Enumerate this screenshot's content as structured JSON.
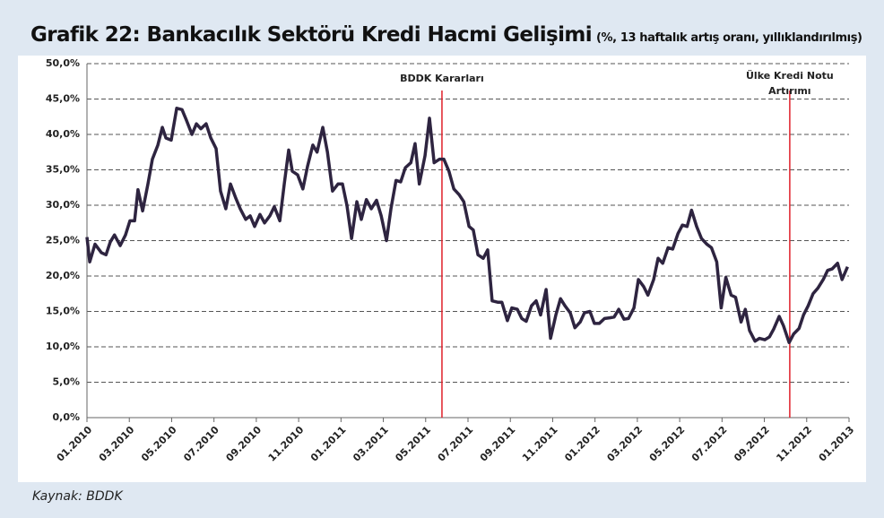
{
  "chart_data": {
    "type": "line",
    "title": "Grafik 22: Bankacılık Sektörü Kredi Hacmi Gelişimi",
    "subtitle": "(%, 13 haftalık artış oranı, yıllıklandırılmış)",
    "source": "Kaynak: BDDK",
    "x": [
      0,
      0.13,
      0.38,
      0.68,
      0.9,
      1.1,
      1.3,
      1.57,
      1.82,
      2.03,
      2.25,
      2.41,
      2.63,
      2.88,
      3.09,
      3.35,
      3.56,
      3.73,
      3.98,
      4.24,
      4.49,
      4.7,
      4.96,
      5.17,
      5.38,
      5.63,
      5.85,
      6.1,
      6.31,
      6.56,
      6.78,
      7.03,
      7.24,
      7.5,
      7.71,
      7.92,
      8.17,
      8.39,
      8.64,
      8.85,
      9.11,
      9.32,
      9.53,
      9.7,
      9.95,
      10.2,
      10.42,
      10.67,
      10.87,
      11.14,
      11.36,
      11.6,
      11.86,
      12.07,
      12.28,
      12.5,
      12.75,
      12.96,
      13.2,
      13.43,
      13.68,
      13.9,
      14.15,
      14.36,
      14.6,
      14.82,
      15.04,
      15.3,
      15.5,
      15.7,
      15.97,
      16.18,
      16.4,
      16.65,
      16.86,
      17.1,
      17.33,
      17.58,
      17.8,
      18.05,
      18.25,
      18.47,
      18.72,
      18.93,
      19.14,
      19.4,
      19.6,
      19.86,
      20.07,
      20.33,
      20.54,
      20.75,
      21.0,
      21.22,
      21.43,
      21.69,
      21.9,
      22.15,
      22.37,
      22.58,
      22.83,
      23.05,
      23.3,
      23.5,
      23.76,
      23.97,
      24.2,
      24.45,
      24.7,
      24.9,
      25.12,
      25.37,
      25.58,
      25.84,
      26.05,
      26.3,
      26.5,
      26.77,
      26.98,
      27.2,
      27.45,
      27.67,
      27.92,
      28.13,
      28.35,
      28.56,
      28.8,
      29.03,
      29.28,
      29.5,
      29.75,
      29.96,
      30.18,
      30.43,
      30.64,
      30.9,
      31.1,
      31.3,
      31.56,
      31.77,
      32.02,
      32.24,
      32.44,
      32.7,
      32.9,
      33.17,
      33.38,
      33.64,
      33.85,
      34.07,
      34.3,
      34.53,
      34.78,
      34.99,
      35.2,
      35.46,
      35.67,
      35.93
    ],
    "series": [
      {
        "name": "Kredi hacmi",
        "color": "#2e2440",
        "values": [
          25.5,
          22,
          24.5,
          23.3,
          23,
          24.8,
          25.8,
          24.3,
          25.8,
          27.8,
          27.8,
          32.2,
          29.2,
          33,
          36.5,
          38.5,
          41,
          39.5,
          39.2,
          43.7,
          43.5,
          42,
          40,
          41.5,
          40.8,
          41.5,
          39.5,
          38,
          32,
          29.5,
          33,
          31,
          29.5,
          28,
          28.5,
          27,
          28.7,
          27.5,
          28.5,
          29.8,
          27.8,
          33,
          37.8,
          34.8,
          34.3,
          32.3,
          35.5,
          38.5,
          37.5,
          41,
          37.5,
          32,
          33,
          33,
          30,
          25.3,
          30.5,
          28,
          30.8,
          29.5,
          30.7,
          28.5,
          25,
          29.5,
          33.5,
          33.3,
          35.3,
          36,
          38.7,
          33,
          37,
          42.3,
          36,
          36.5,
          36.5,
          34.8,
          32.3,
          31.5,
          30.5,
          27,
          26.5,
          23,
          22.5,
          23.7,
          16.5,
          16.3,
          16.3,
          13.7,
          15.5,
          15.3,
          14,
          13.6,
          15.8,
          16.5,
          14.5,
          18.1,
          11.2,
          14.5,
          16.8,
          15.8,
          14.8,
          12.7,
          13.5,
          14.8,
          15,
          13.3,
          13.3,
          14,
          14.1,
          14.2,
          15.3,
          13.9,
          14,
          15.5,
          19.5,
          18.5,
          17.3,
          19.5,
          22.5,
          21.8,
          24,
          23.8,
          26,
          27.2,
          27,
          29.3,
          27,
          25.3,
          24.5,
          24,
          22,
          15.5,
          19.8,
          17.3,
          17,
          13.5,
          15.3,
          12.3,
          10.8,
          11.2,
          11,
          11.4,
          12.5,
          14.3,
          13,
          10.6,
          11.8,
          12.6,
          14.5,
          15.8,
          17.5,
          18.3,
          19.5,
          20.8,
          21,
          21.8,
          19.5,
          21.3
        ]
      }
    ],
    "xlim": [
      0,
      36
    ],
    "xticks": [
      {
        "value": 0,
        "label": "01.2010"
      },
      {
        "value": 2,
        "label": "03.2010"
      },
      {
        "value": 4,
        "label": "05.2010"
      },
      {
        "value": 6,
        "label": "07.2010"
      },
      {
        "value": 8,
        "label": "09.2010"
      },
      {
        "value": 10,
        "label": "11.2010"
      },
      {
        "value": 12,
        "label": "01.2011"
      },
      {
        "value": 14,
        "label": "03.2011"
      },
      {
        "value": 16,
        "label": "05.2011"
      },
      {
        "value": 18,
        "label": "07.2011"
      },
      {
        "value": 20,
        "label": "09.2011"
      },
      {
        "value": 22,
        "label": "11.2011"
      },
      {
        "value": 24,
        "label": "01.2012"
      },
      {
        "value": 26,
        "label": "03.2012"
      },
      {
        "value": 28,
        "label": "05.2012"
      },
      {
        "value": 30,
        "label": "07.2012"
      },
      {
        "value": 32,
        "label": "09.2012"
      },
      {
        "value": 34,
        "label": "11.2012"
      },
      {
        "value": 36,
        "label": "01.2013"
      }
    ],
    "ylim": [
      0,
      50
    ],
    "yticks": [
      {
        "value": 0,
        "label": "0,0%"
      },
      {
        "value": 5,
        "label": "5,0%"
      },
      {
        "value": 10,
        "label": "10,0%"
      },
      {
        "value": 15,
        "label": "15,0%"
      },
      {
        "value": 20,
        "label": "20,0%"
      },
      {
        "value": 25,
        "label": "25,0%"
      },
      {
        "value": 30,
        "label": "30,0%"
      },
      {
        "value": 35,
        "label": "35,0%"
      },
      {
        "value": 40,
        "label": "40,0%"
      },
      {
        "value": 45,
        "label": "45,0%"
      },
      {
        "value": 50,
        "label": "50,0%"
      }
    ],
    "grid": true,
    "annotations": [
      {
        "x": 16.77,
        "color": "#e0202a",
        "text": [
          "BDDK Kararları"
        ]
      },
      {
        "x": 33.2,
        "color": "#e0202a",
        "text": [
          "Ülke Kredi Notu",
          "Artırımı"
        ]
      }
    ]
  }
}
